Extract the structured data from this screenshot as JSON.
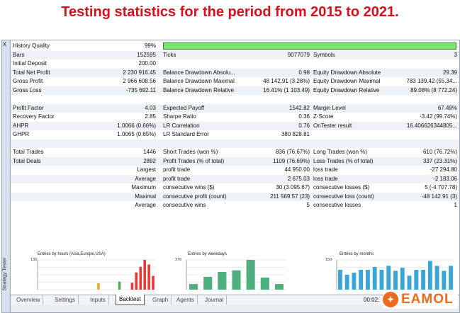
{
  "heading": "Testing statistics for the period from 2015 to 2021.",
  "sidebar": {
    "close": "x",
    "label": "Strategy Tester"
  },
  "history_quality": {
    "label": "History Quality",
    "value": "99%",
    "fraction": 0.99
  },
  "rows": [
    {
      "cells": [
        "Bars",
        "152595",
        "Ticks",
        "9077079",
        "Symbols",
        "3"
      ]
    },
    {
      "cells": [
        "Initial Deposit",
        "200.00",
        "",
        "",
        "",
        ""
      ]
    },
    {
      "cells": [
        "Total Net Profit",
        "2 230 916.45",
        "Balance Drawdown Absolu...",
        "0.98",
        "Equity Drawdown Absolute",
        "29.39"
      ]
    },
    {
      "cells": [
        "Gross Profit",
        "2 966 608.56",
        "Balance Drawdown Maximal",
        "48 142.91 (3.28%)",
        "Equity Drawdown Maximal",
        "783 139.42 (55.34..."
      ]
    },
    {
      "cells": [
        "Gross Loss",
        "-735 692.11",
        "Balance Drawdown Relative",
        "16.41% (1 103.49)",
        "Equity Drawdown Relative",
        "89.08% (8 772.24)"
      ]
    },
    {
      "gap": true
    },
    {
      "cells": [
        "Profit Factor",
        "4.03",
        "Expected Payoff",
        "1542.82",
        "Margin Level",
        "67.49%"
      ]
    },
    {
      "cells": [
        "Recovery Factor",
        "2.85",
        "Sharpe Ratio",
        "0.36",
        "Z-Score",
        "-3.42 (99.74%)"
      ]
    },
    {
      "cells": [
        "AHPR",
        "1.0066 (0.66%)",
        "LR Correlation",
        "0.76",
        "OnTester result",
        "16.406626344805..."
      ]
    },
    {
      "cells": [
        "GHPR",
        "1.0065 (0.65%)",
        "LR Standard Error",
        "380 828.81",
        "",
        ""
      ]
    },
    {
      "gap": true
    },
    {
      "cells": [
        "Total Trades",
        "1446",
        "Short Trades (won %)",
        "836 (76.67%)",
        "Long Trades (won %)",
        "610 (76.72%)"
      ]
    },
    {
      "cells": [
        "Total Deals",
        "2892",
        "Profit Trades (% of total)",
        "1109 (76.69%)",
        "Loss Trades (% of total)",
        "337 (23.31%)"
      ]
    },
    {
      "cells": [
        "",
        "Largest",
        "profit trade",
        "44 950.00",
        "loss trade",
        "-27 294.80"
      ]
    },
    {
      "cells": [
        "",
        "Average",
        "profit trade",
        "2 675.03",
        "loss trade",
        "-2 183.06"
      ]
    },
    {
      "cells": [
        "",
        "Maximum",
        "consecutive wins ($)",
        "30 (3 095.67)",
        "consecutive losses ($)",
        "5 (-4 707.78)"
      ]
    },
    {
      "cells": [
        "",
        "Maximal",
        "consecutive profit (count)",
        "211 569.57 (23)",
        "consecutive loss (count)",
        "-48 142.91 (3)"
      ]
    },
    {
      "cells": [
        "",
        "Average",
        "consecutive wins",
        "5",
        "consecutive losses",
        "1"
      ]
    }
  ],
  "chart_data": [
    {
      "type": "bar",
      "title": "Entries by hours (Asia,Europe,USA)",
      "ylim": [
        0,
        130
      ],
      "ytick": "130",
      "values": [
        0,
        0,
        0,
        0,
        0,
        0,
        0,
        0,
        0,
        0,
        0,
        0,
        0,
        0,
        28,
        0,
        0,
        0,
        0,
        35,
        0,
        0,
        30,
        75,
        100,
        130,
        110,
        60
      ],
      "colors": [
        "#f5a623",
        "#f5a623",
        "#f5a623",
        "#f5a623",
        "#f5a623",
        "#f5a623",
        "#f5a623",
        "#f5a623",
        "#f5a623",
        "#f5a623",
        "#f5a623",
        "#f5a623",
        "#f5a623",
        "#f5a623",
        "#f5a623",
        "#4caf50",
        "#4caf50",
        "#4caf50",
        "#4caf50",
        "#4caf50",
        "#4caf50",
        "#4caf50",
        "#e53935",
        "#e53935",
        "#e53935",
        "#e53935",
        "#e53935",
        "#e53935"
      ]
    },
    {
      "type": "bar",
      "title": "Entries by weekdays",
      "ylim": [
        0,
        370
      ],
      "ytick": "370",
      "values": [
        70,
        160,
        220,
        240,
        370,
        150,
        70
      ],
      "color": "#4fae7d"
    },
    {
      "type": "bar",
      "title": "Entries by months",
      "ylim": [
        0,
        150
      ],
      "ytick": "150",
      "values": [
        100,
        75,
        85,
        100,
        100,
        115,
        100,
        120,
        95,
        110,
        70,
        100,
        100,
        145,
        120,
        95,
        120
      ],
      "color": "#3aa5d6"
    }
  ],
  "tabs": [
    {
      "label": "Overview",
      "active": false
    },
    {
      "label": "Settings",
      "active": false
    },
    {
      "label": "Inputs",
      "active": false
    },
    {
      "label": "Backtest",
      "active": true
    },
    {
      "label": "Graph",
      "active": false
    },
    {
      "label": "Agents",
      "active": false
    },
    {
      "label": "Journal",
      "active": false
    }
  ],
  "timer": "00:02:",
  "logo": {
    "text": "EAMOL"
  }
}
